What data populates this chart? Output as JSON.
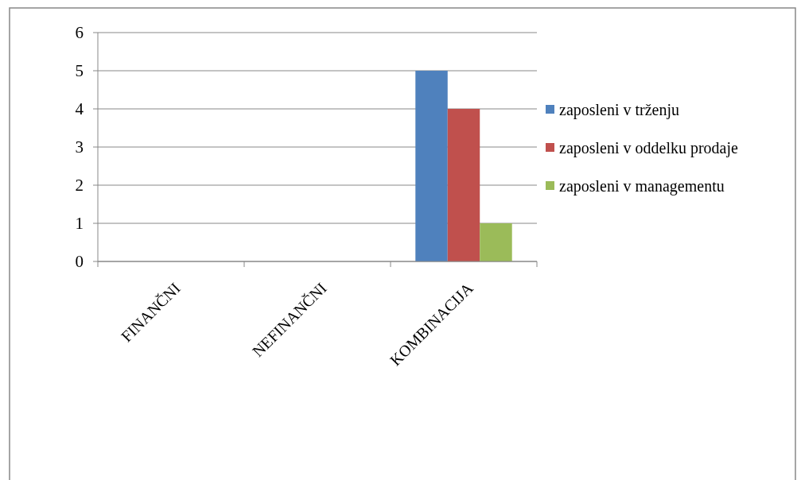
{
  "chart_data": {
    "type": "bar",
    "categories": [
      "FINANČNI",
      "NEFINANČNI",
      "KOMBINACIJA"
    ],
    "series": [
      {
        "name": "zaposleni v trženju",
        "color": "#4f81bd",
        "values": [
          0,
          0,
          5
        ]
      },
      {
        "name": "zaposleni v oddelku prodaje",
        "color": "#c0504d",
        "values": [
          0,
          0,
          4
        ]
      },
      {
        "name": "zaposleni v managementu",
        "color": "#9bbb59",
        "values": [
          0,
          0,
          1
        ]
      }
    ],
    "ylim": [
      0,
      6
    ],
    "yticks": [
      0,
      1,
      2,
      3,
      4,
      5,
      6
    ],
    "grid": "y",
    "legend": "right"
  }
}
